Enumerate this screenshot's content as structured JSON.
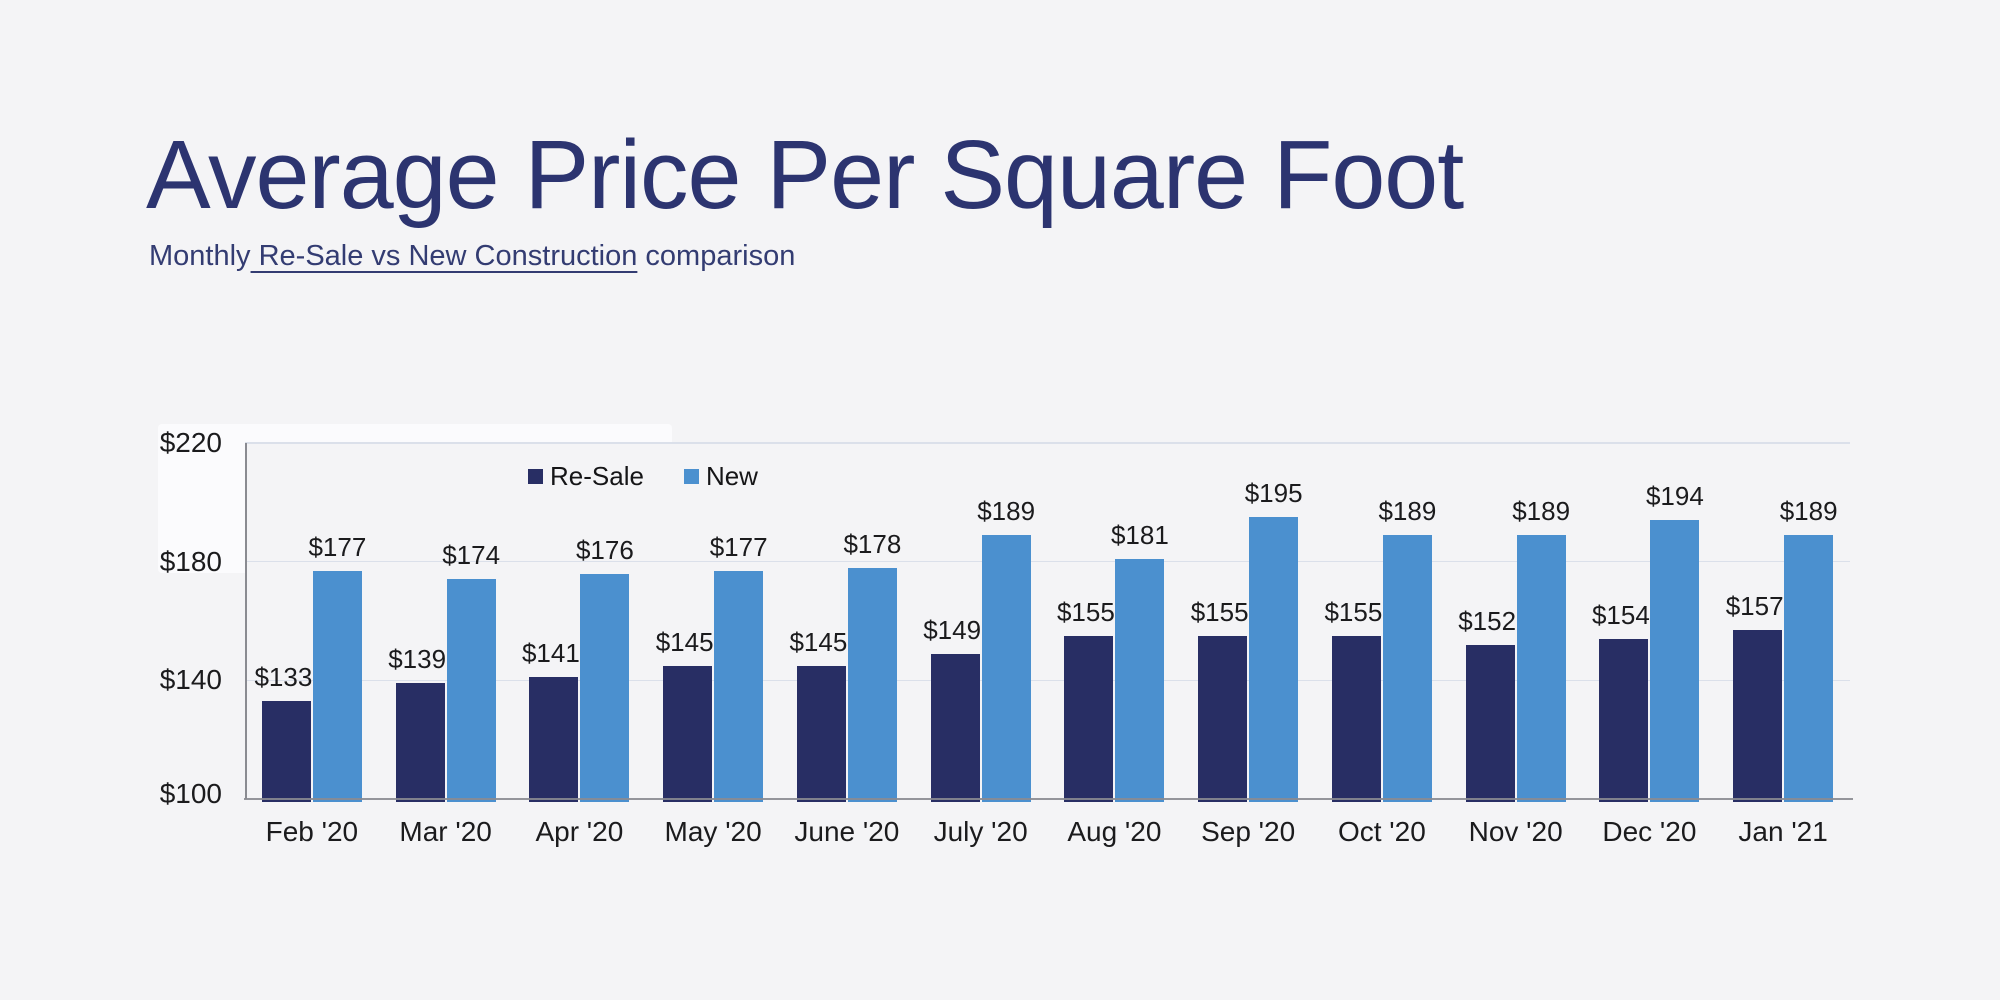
{
  "page": {
    "background": "#f4f4f6"
  },
  "header": {
    "title": "Average Price Per Square Foot",
    "subtitle_prefix": "Monthly",
    "subtitle_link": " Re-Sale vs New Construction",
    "subtitle_suffix": " comparison"
  },
  "chart_data": {
    "type": "bar",
    "title": "Average Price Per Square Foot",
    "subtitle": "Monthly Re-Sale vs New Construction comparison",
    "categories": [
      "Feb '20",
      "Mar '20",
      "Apr '20",
      "May '20",
      "June '20",
      "July '20",
      "Aug '20",
      "Sep '20",
      "Oct '20",
      "Nov '20",
      "Dec '20",
      "Jan '21"
    ],
    "series": [
      {
        "name": "Re-Sale",
        "color": "#282e64",
        "values": [
          133,
          139,
          141,
          145,
          145,
          149,
          155,
          155,
          155,
          152,
          154,
          157
        ]
      },
      {
        "name": "New",
        "color": "#4b90cf",
        "values": [
          177,
          174,
          176,
          177,
          178,
          189,
          181,
          195,
          189,
          189,
          194,
          189
        ]
      }
    ],
    "value_prefix": "$",
    "y_ticks": [
      220,
      180,
      140,
      100
    ],
    "ylim": [
      100,
      220
    ],
    "grid": true,
    "legend": [
      "Re-Sale",
      "New"
    ],
    "legend_position": "top-center",
    "xlabel": "",
    "ylabel": ""
  },
  "colors": {
    "page_bg": "#f4f4f6",
    "patch_bg": "#fbfbfd",
    "title": "#2c3470",
    "subtitle": "#333c72",
    "axis_line": "#8a8b91",
    "gridline": "#dbe0ea",
    "tick_label": "#1b1b1d",
    "value_label": "#1b1b1d"
  }
}
